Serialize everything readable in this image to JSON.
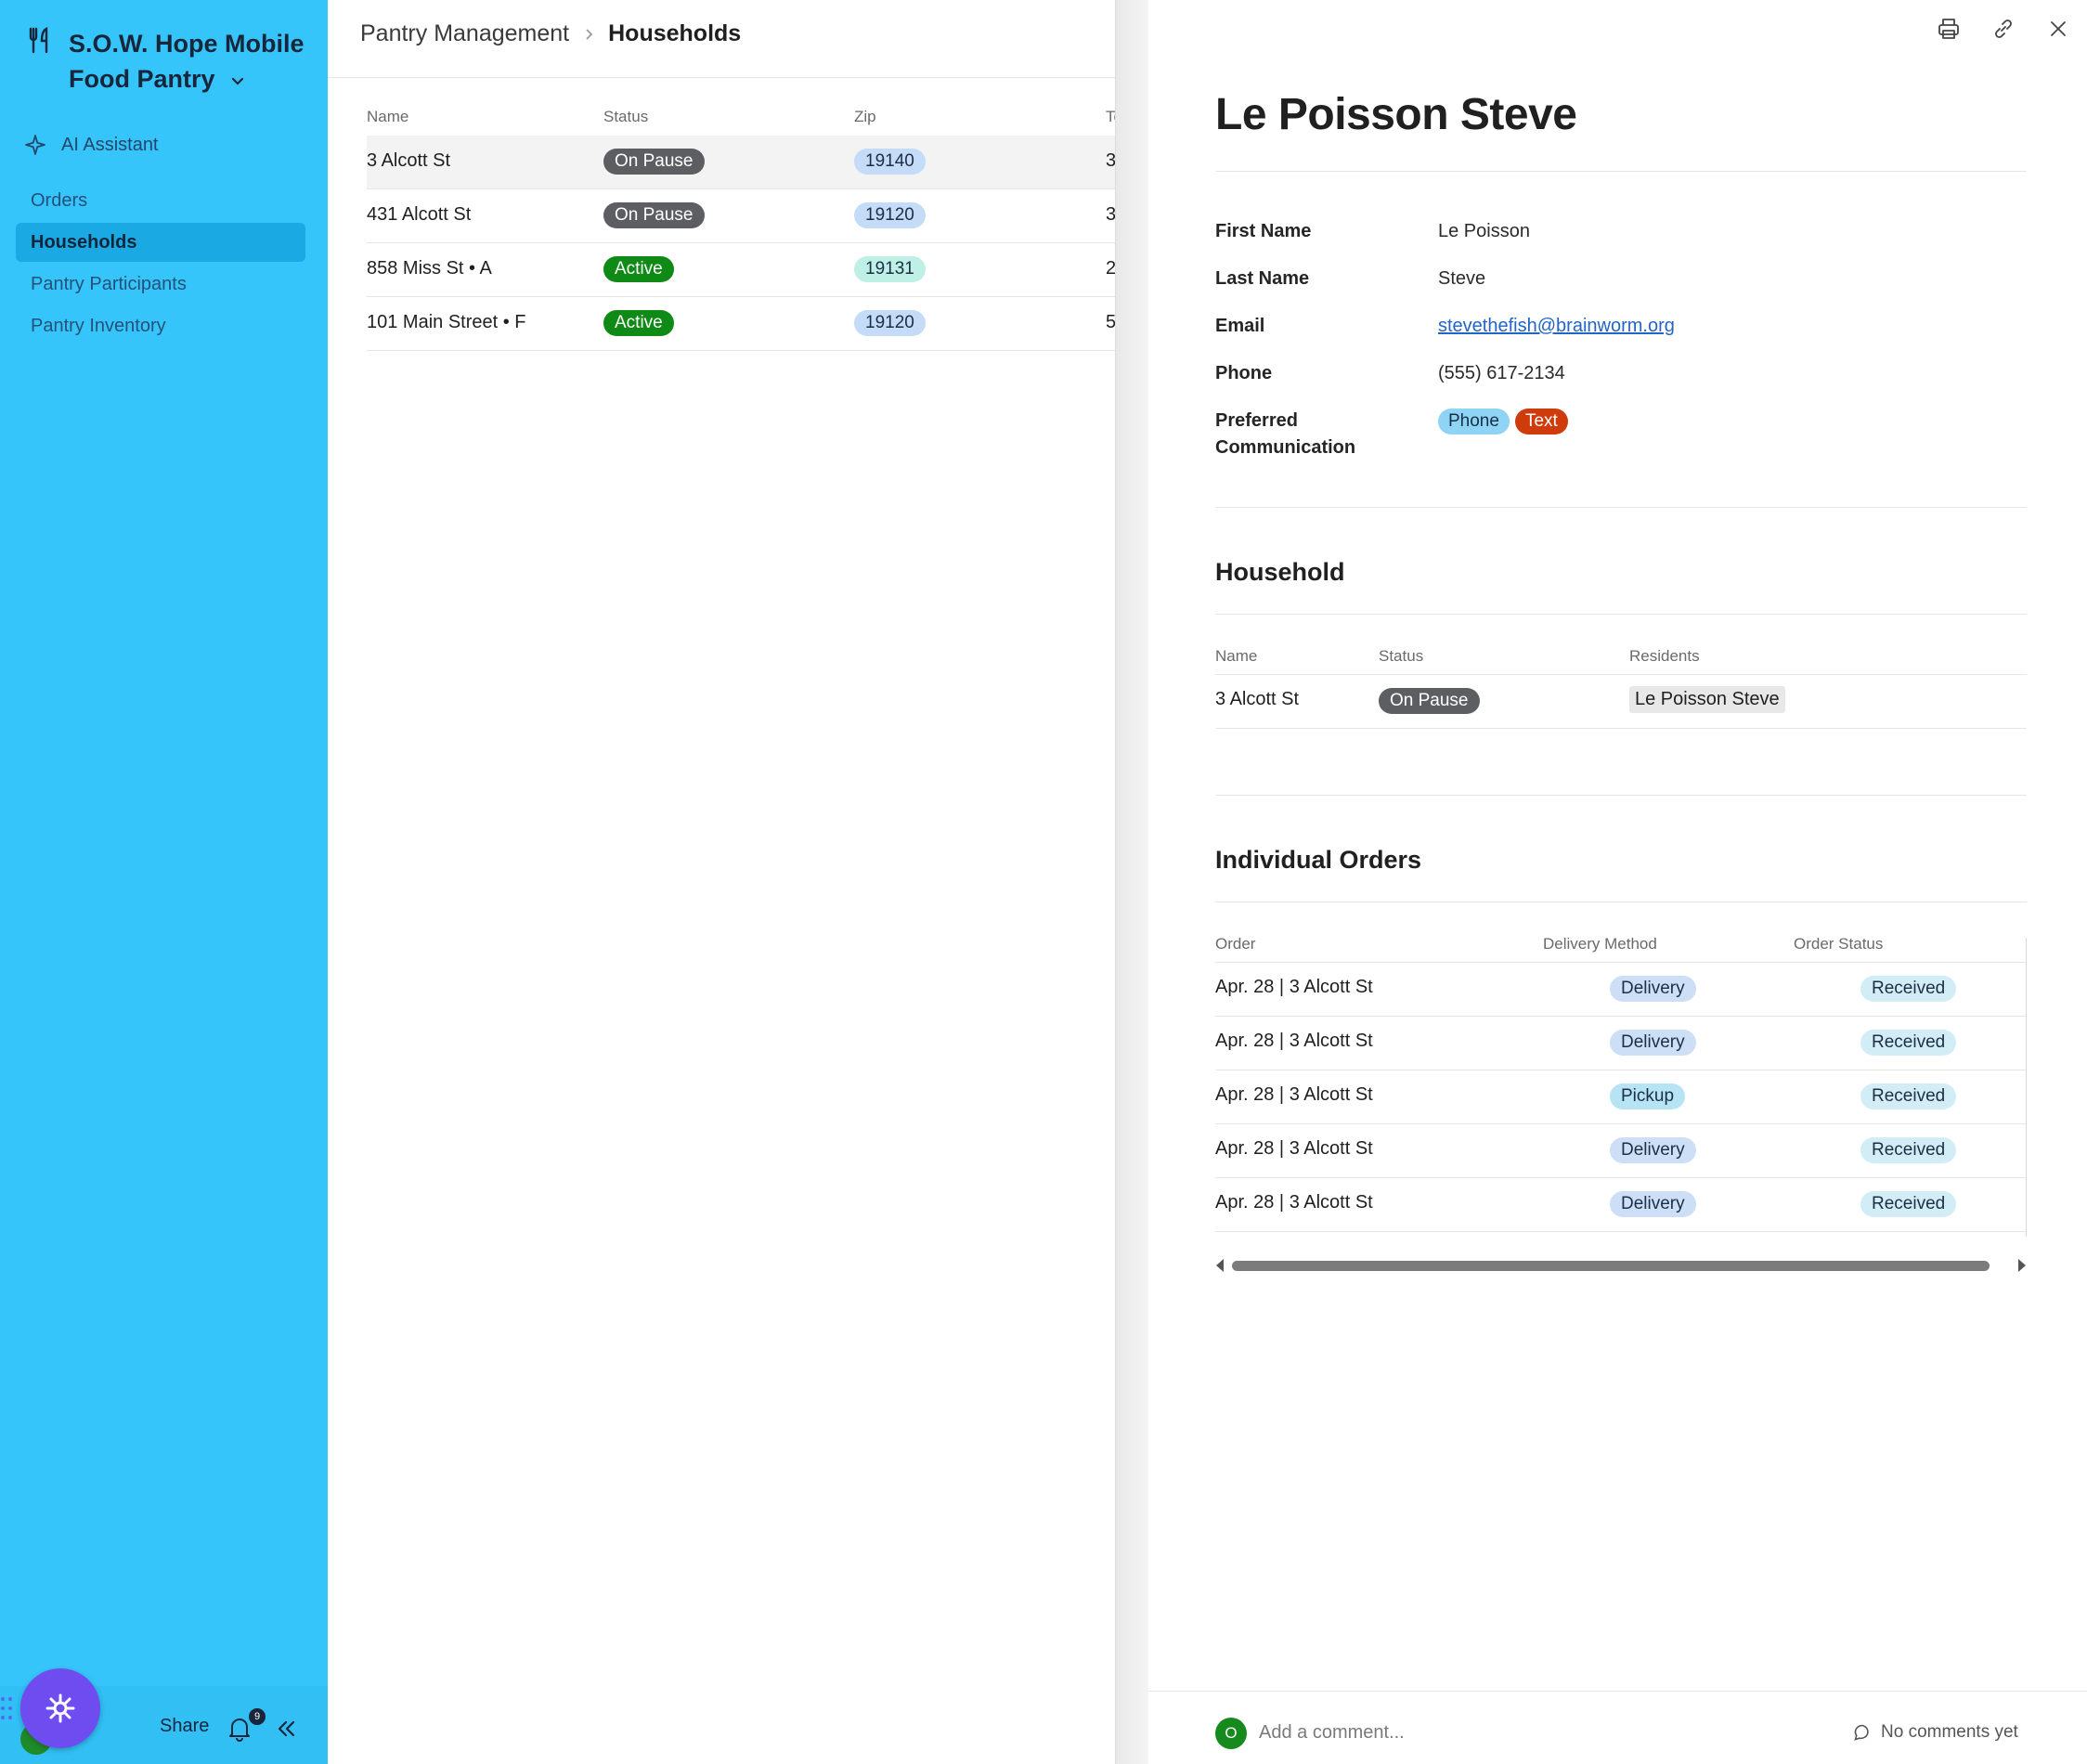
{
  "sidebar": {
    "workspace_name": "S.O.W. Hope Mobile Food Pantry",
    "ai_assistant": "AI Assistant",
    "nav": [
      {
        "label": "Orders",
        "active": false
      },
      {
        "label": "Households",
        "active": true
      },
      {
        "label": "Pantry Participants",
        "active": false
      },
      {
        "label": "Pantry Inventory",
        "active": false
      }
    ],
    "footer": {
      "share": "Share",
      "notification_count": "9"
    }
  },
  "breadcrumb": {
    "parent": "Pantry Management",
    "current": "Households"
  },
  "list": {
    "columns": [
      "Name",
      "Status",
      "Zip",
      "To"
    ],
    "rows": [
      {
        "name": "3 Alcott St",
        "status": "On Pause",
        "zip": "19140",
        "extra": "3"
      },
      {
        "name": "431 Alcott St",
        "status": "On Pause",
        "zip": "19120",
        "extra": "3"
      },
      {
        "name": "858 Miss St • A",
        "status": "Active",
        "zip": "19131",
        "extra": "2"
      },
      {
        "name": "101 Main Street • F",
        "status": "Active",
        "zip": "19120",
        "extra": "5"
      }
    ]
  },
  "detail": {
    "title": "Le Poisson Steve",
    "fields": {
      "first_name_label": "First Name",
      "first_name": "Le Poisson",
      "last_name_label": "Last Name",
      "last_name": "Steve",
      "email_label": "Email",
      "email": "stevethefish@brainworm.org",
      "phone_label": "Phone",
      "phone": "(555) 617-2134",
      "pref_label_1": "Preferred",
      "pref_label_2": "Communication",
      "pref_tags": [
        "Phone",
        "Text"
      ]
    },
    "household": {
      "title": "Household",
      "columns": [
        "Name",
        "Status",
        "Residents"
      ],
      "row": {
        "name": "3 Alcott St",
        "status": "On Pause",
        "resident": "Le Poisson Steve"
      }
    },
    "orders": {
      "title": "Individual Orders",
      "columns": [
        "Order",
        "Delivery Method",
        "Order Status"
      ],
      "rows": [
        {
          "order": "Apr. 28 | 3 Alcott St",
          "method": "Delivery",
          "status": "Received"
        },
        {
          "order": "Apr. 28 | 3 Alcott St",
          "method": "Delivery",
          "status": "Received"
        },
        {
          "order": "Apr. 28 | 3 Alcott St",
          "method": "Pickup",
          "status": "Received"
        },
        {
          "order": "Apr. 28 | 3 Alcott St",
          "method": "Delivery",
          "status": "Received"
        },
        {
          "order": "Apr. 28 | 3 Alcott St",
          "method": "Delivery",
          "status": "Received"
        }
      ]
    },
    "comments": {
      "avatar_initial": "O",
      "placeholder": "Add a comment...",
      "status": "No comments yet"
    }
  }
}
